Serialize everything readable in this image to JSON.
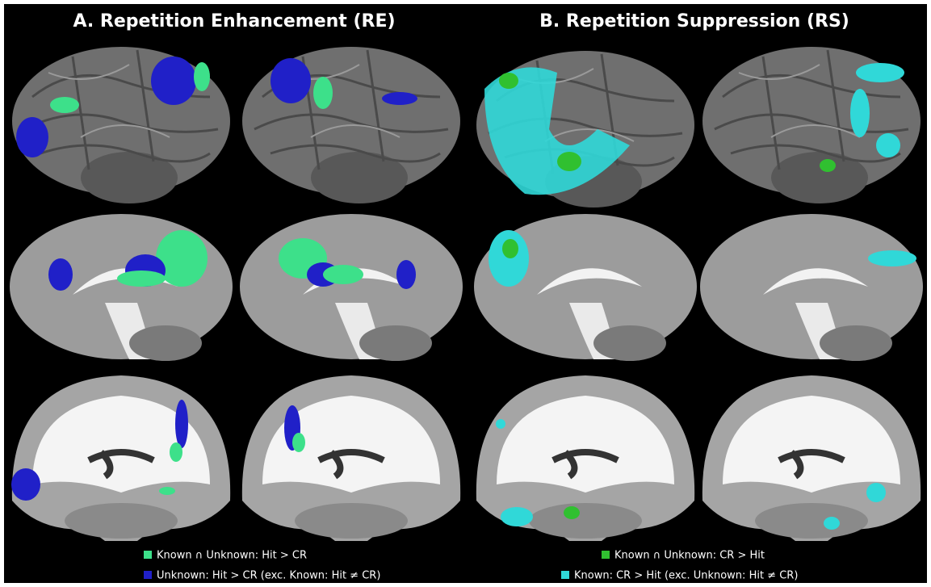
{
  "panels": [
    {
      "title": "A. Repetition Enhancement (RE)",
      "legend": [
        {
          "label": "Known ∩ Unknown: Hit > CR"
        },
        {
          "label": "Unknown: Hit > CR (exc. Known: Hit ≠ CR)"
        }
      ]
    },
    {
      "title": "B. Repetition Suppression (RS)",
      "legend": [
        {
          "label": "Known ∩ Unknown: CR > Hit"
        },
        {
          "label": "Known: CR > Hit (exc. Unknown: Hit ≠ CR)"
        }
      ]
    }
  ]
}
